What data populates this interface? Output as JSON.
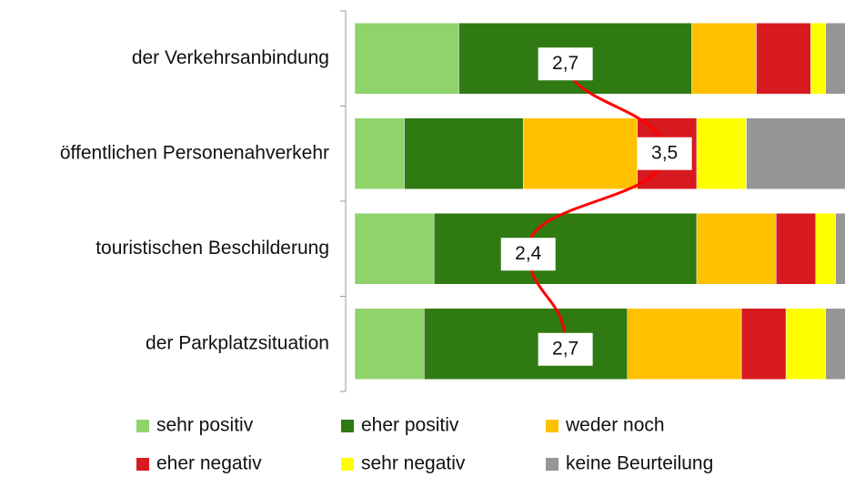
{
  "chart_data": {
    "type": "stacked-bar-horizontal",
    "categories": [
      "der Verkehrsanbindung",
      "öffentlichen Personenahverkehr",
      "touristischen Beschilderung",
      "der Parkplatzsituation"
    ],
    "series": [
      {
        "name": "sehr positiv",
        "color": "#8fd36b",
        "values": [
          21,
          10,
          16,
          14
        ]
      },
      {
        "name": "eher positiv",
        "color": "#2f7a12",
        "values": [
          47,
          24,
          53,
          41
        ]
      },
      {
        "name": "weder noch",
        "color": "#ffc000",
        "values": [
          13,
          23,
          16,
          23
        ]
      },
      {
        "name": "eher negativ",
        "color": "#d71920",
        "values": [
          11,
          12,
          8,
          9
        ]
      },
      {
        "name": "sehr negativ",
        "color": "#ffff00",
        "values": [
          3,
          10,
          4,
          8
        ]
      },
      {
        "name": "keine Beurteilung",
        "color": "#969696",
        "values": [
          5,
          21,
          3,
          5
        ]
      }
    ],
    "xlim": [
      0,
      100
    ],
    "means": [
      {
        "value": 2.7,
        "label": "2,7"
      },
      {
        "value": 3.5,
        "label": "3,5"
      },
      {
        "value": 2.4,
        "label": "2,4"
      },
      {
        "value": 2.7,
        "label": "2,7"
      }
    ],
    "mean_lim": [
      1,
      5
    ],
    "mean_color": "#ff0000"
  }
}
